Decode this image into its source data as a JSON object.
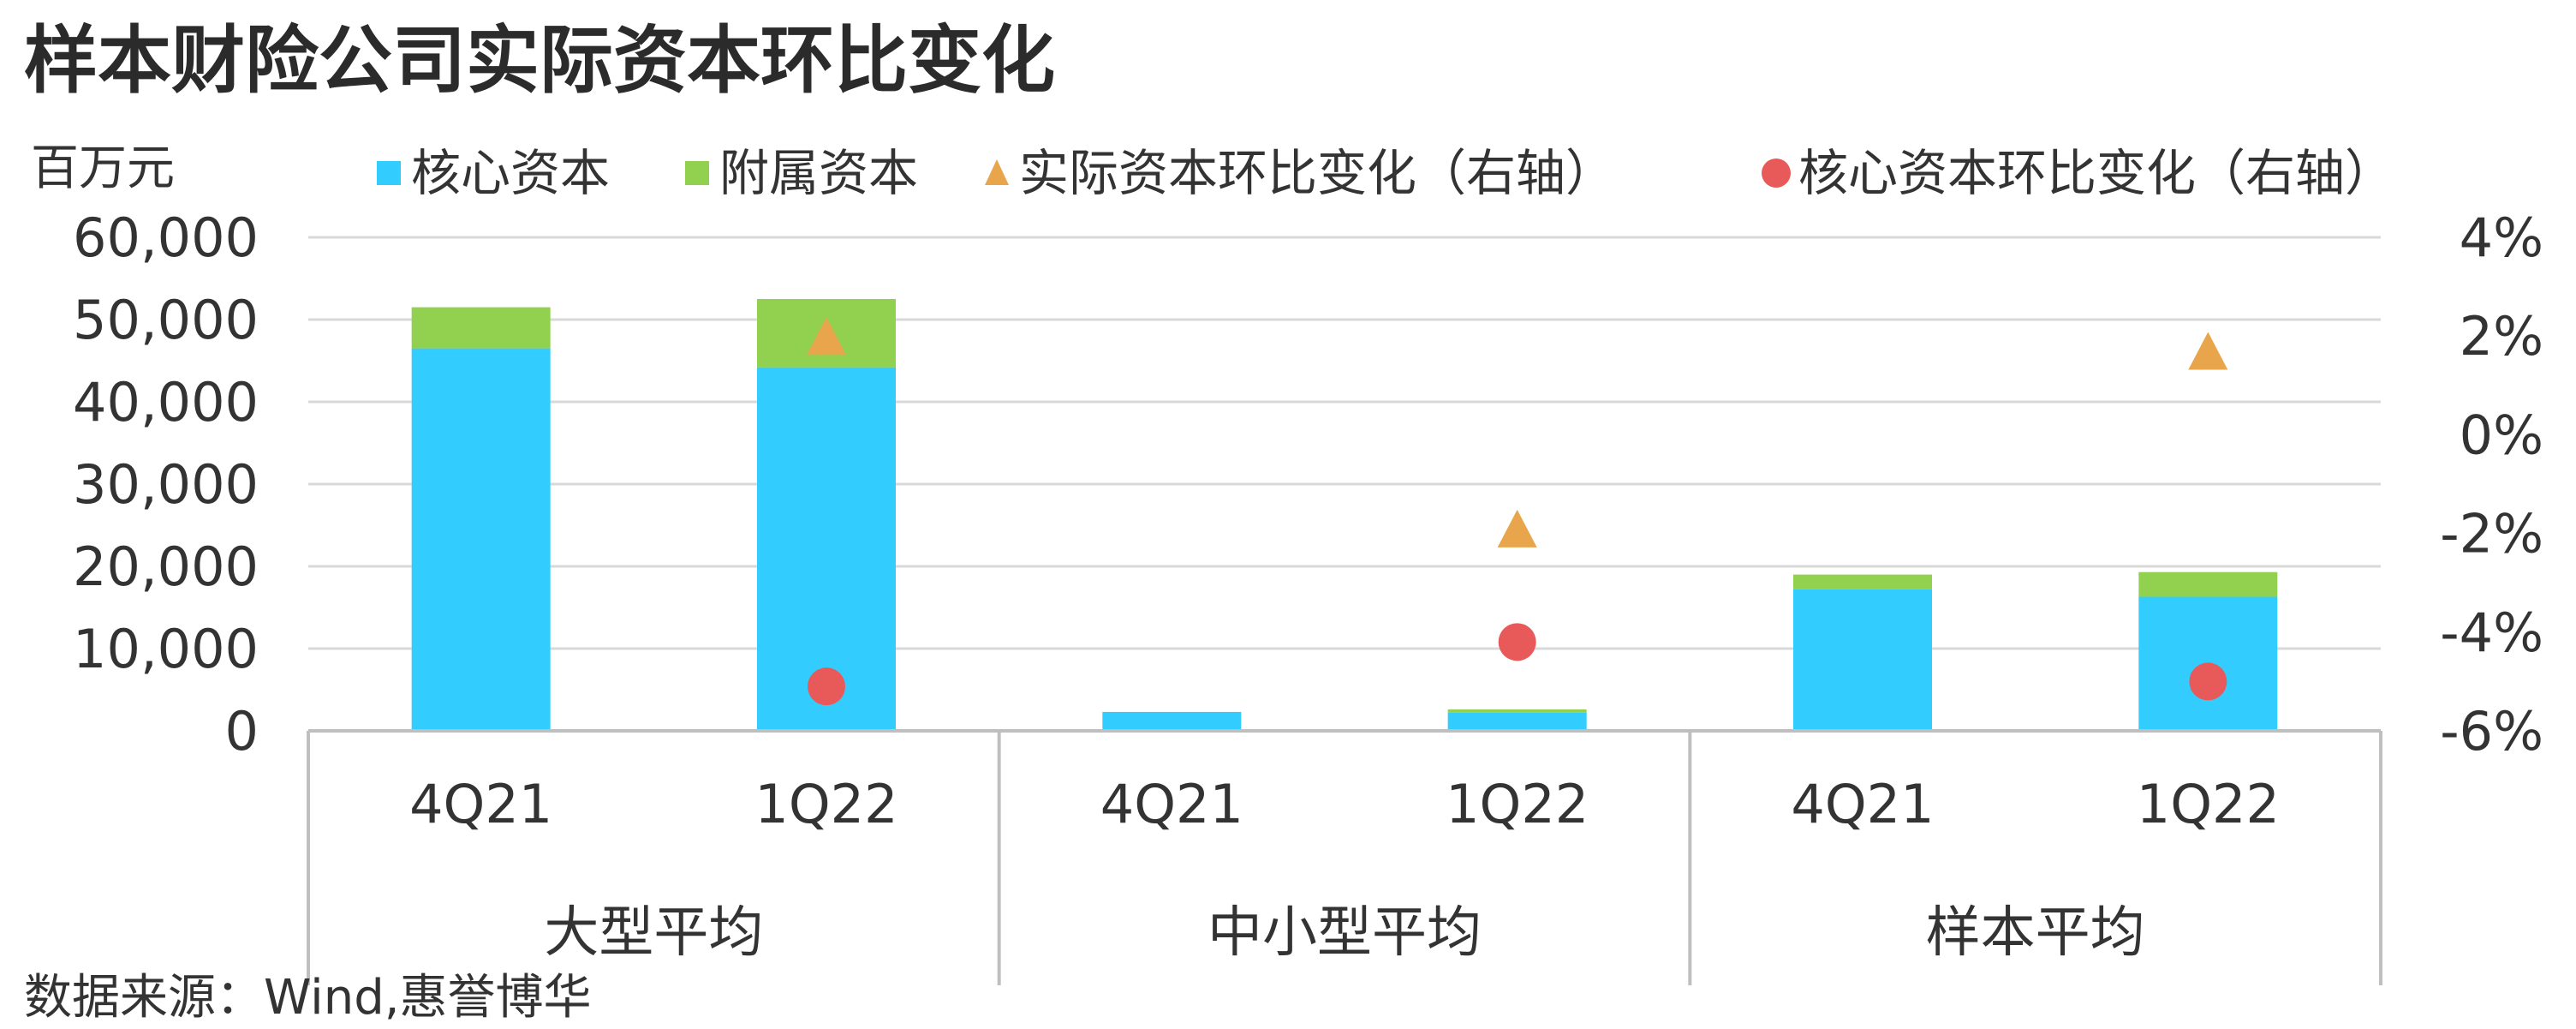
{
  "chart_data": {
    "type": "bar",
    "title": "样本财险公司实际资本环比变化",
    "y_unit_label": "百万元",
    "source": "数据来源：Wind,惠誉博华",
    "groups": [
      "大型平均",
      "中小型平均",
      "样本平均"
    ],
    "categories": [
      "4Q21",
      "1Q22",
      "4Q21",
      "1Q22",
      "4Q21",
      "1Q22"
    ],
    "y_left": {
      "min": 0,
      "max": 60000,
      "step": 10000,
      "tick_labels": [
        "0",
        "10,000",
        "20,000",
        "30,000",
        "40,000",
        "50,000",
        "60,000"
      ]
    },
    "y_right": {
      "min": -6,
      "max": 4,
      "step": 2,
      "tick_labels": [
        "-6%",
        "-4%",
        "-2%",
        "0%",
        "2%",
        "4%"
      ]
    },
    "series": [
      {
        "name": "核心资本",
        "kind": "bar",
        "stack": "capital",
        "color": "#33CCFF",
        "values": [
          46500,
          44200,
          2300,
          2200,
          17200,
          16300
        ]
      },
      {
        "name": "附属资本",
        "kind": "bar",
        "stack": "capital",
        "color": "#92D050",
        "values": [
          5000,
          8300,
          0,
          400,
          1800,
          3000
        ]
      },
      {
        "name": "实际资本环比变化（右轴）",
        "kind": "scatter",
        "marker": "triangle",
        "axis": "right",
        "color": "#E8A54B",
        "values": [
          null,
          2.0,
          null,
          -1.9,
          null,
          1.7
        ]
      },
      {
        "name": "核心资本环比变化（右轴）",
        "kind": "scatter",
        "marker": "circle",
        "axis": "right",
        "color": "#E85A5A",
        "values": [
          null,
          -5.1,
          null,
          -4.2,
          null,
          -5.0
        ]
      }
    ],
    "grid": true,
    "legend_position": "top"
  }
}
